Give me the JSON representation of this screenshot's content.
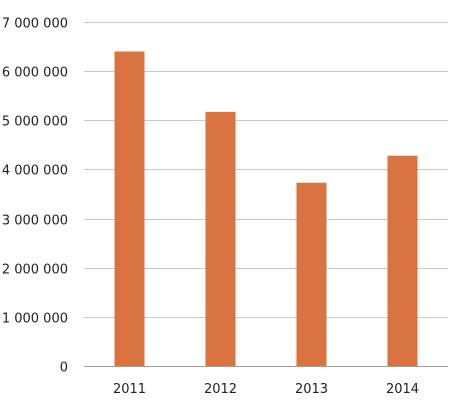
{
  "chart_data": {
    "type": "bar",
    "categories": [
      "2011",
      "2012",
      "2013",
      "2014"
    ],
    "series": [
      {
        "values": [
          6400000,
          5170000,
          3730000,
          4280000
        ]
      }
    ],
    "title": "",
    "xlabel": "",
    "ylabel": "",
    "ylim": [
      0,
      7000000
    ],
    "yticks": [
      0,
      1000000,
      2000000,
      3000000,
      4000000,
      5000000,
      6000000,
      7000000
    ],
    "ytick_labels": [
      "0",
      "1 000 000",
      "2 000 000",
      "3 000 000",
      "4 000 000",
      "5 000 000",
      "6 000 000",
      "7 000 000"
    ],
    "grid": true,
    "bar_color": "#d9733f",
    "grid_color": "#c8c8c8"
  }
}
